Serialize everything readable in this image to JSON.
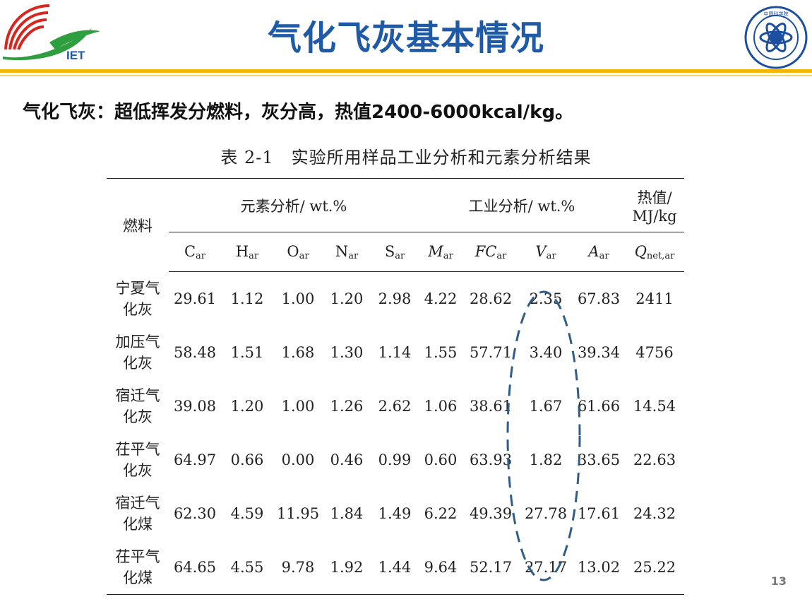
{
  "header": {
    "title": "气化飞灰基本情况",
    "iet_logo_text": "IET",
    "cas_logo_text": "中国科学院"
  },
  "subtitle": "气化飞灰：超低挥发分燃料，灰分高，热值2400-6000kcal/kg。",
  "table": {
    "caption": "表 2-1　实验所用样品工业分析和元素分析结果",
    "fuel_header": "燃料",
    "group_elemental": "元素分析/ wt.%",
    "group_proximate": "工业分析/ wt.%",
    "group_heat_line1": "热值/",
    "group_heat_line2": "MJ/kg",
    "columns": [
      {
        "base": "C",
        "sub": "ar",
        "italic": false
      },
      {
        "base": "H",
        "sub": "ar",
        "italic": false
      },
      {
        "base": "O",
        "sub": "ar",
        "italic": false
      },
      {
        "base": "N",
        "sub": "ar",
        "italic": false
      },
      {
        "base": "S",
        "sub": "ar",
        "italic": false
      },
      {
        "base": "M",
        "sub": "ar",
        "italic": true
      },
      {
        "base": "FC",
        "sub": "ar",
        "italic": true
      },
      {
        "base": "V",
        "sub": "ar",
        "italic": true
      },
      {
        "base": "A",
        "sub": "ar",
        "italic": true
      },
      {
        "base": "Q",
        "sub": "net,ar",
        "italic": true
      }
    ],
    "rows": [
      {
        "fuel_line1": "宁夏气",
        "fuel_line2": "化灰",
        "values": [
          "29.61",
          "1.12",
          "1.00",
          "1.20",
          "2.98",
          "4.22",
          "28.62",
          "2.35",
          "67.83",
          "2411"
        ]
      },
      {
        "fuel_line1": "加压气",
        "fuel_line2": "化灰",
        "values": [
          "58.48",
          "1.51",
          "1.68",
          "1.30",
          "1.14",
          "1.55",
          "57.71",
          "3.40",
          "39.34",
          "4756"
        ]
      },
      {
        "fuel_line1": "宿迁气",
        "fuel_line2": "化灰",
        "values": [
          "39.08",
          "1.20",
          "1.00",
          "1.26",
          "2.62",
          "1.06",
          "38.61",
          "1.67",
          "61.66",
          "14.54"
        ]
      },
      {
        "fuel_line1": "茌平气",
        "fuel_line2": "化灰",
        "values": [
          "64.97",
          "0.66",
          "0.00",
          "0.46",
          "0.99",
          "0.60",
          "63.93",
          "1.82",
          "33.65",
          "22.63"
        ]
      },
      {
        "fuel_line1": "宿迁气",
        "fuel_line2": "化煤",
        "values": [
          "62.30",
          "4.59",
          "11.95",
          "1.84",
          "1.49",
          "6.22",
          "49.39",
          "27.78",
          "17.61",
          "24.32"
        ]
      },
      {
        "fuel_line1": "茌平气",
        "fuel_line2": "化煤",
        "values": [
          "64.65",
          "4.55",
          "9.78",
          "1.92",
          "1.44",
          "9.64",
          "52.17",
          "27.17",
          "13.02",
          "25.22"
        ]
      }
    ]
  },
  "highlight": {
    "color": "#2f5d8a",
    "target_column": "V_ar"
  },
  "page_number": "13",
  "colors": {
    "title": "#1f5aa6",
    "rule": "#f2b705",
    "iet_red": "#d9251d",
    "iet_green": "#2e9e3e",
    "cas_blue": "#1d4fa0"
  }
}
